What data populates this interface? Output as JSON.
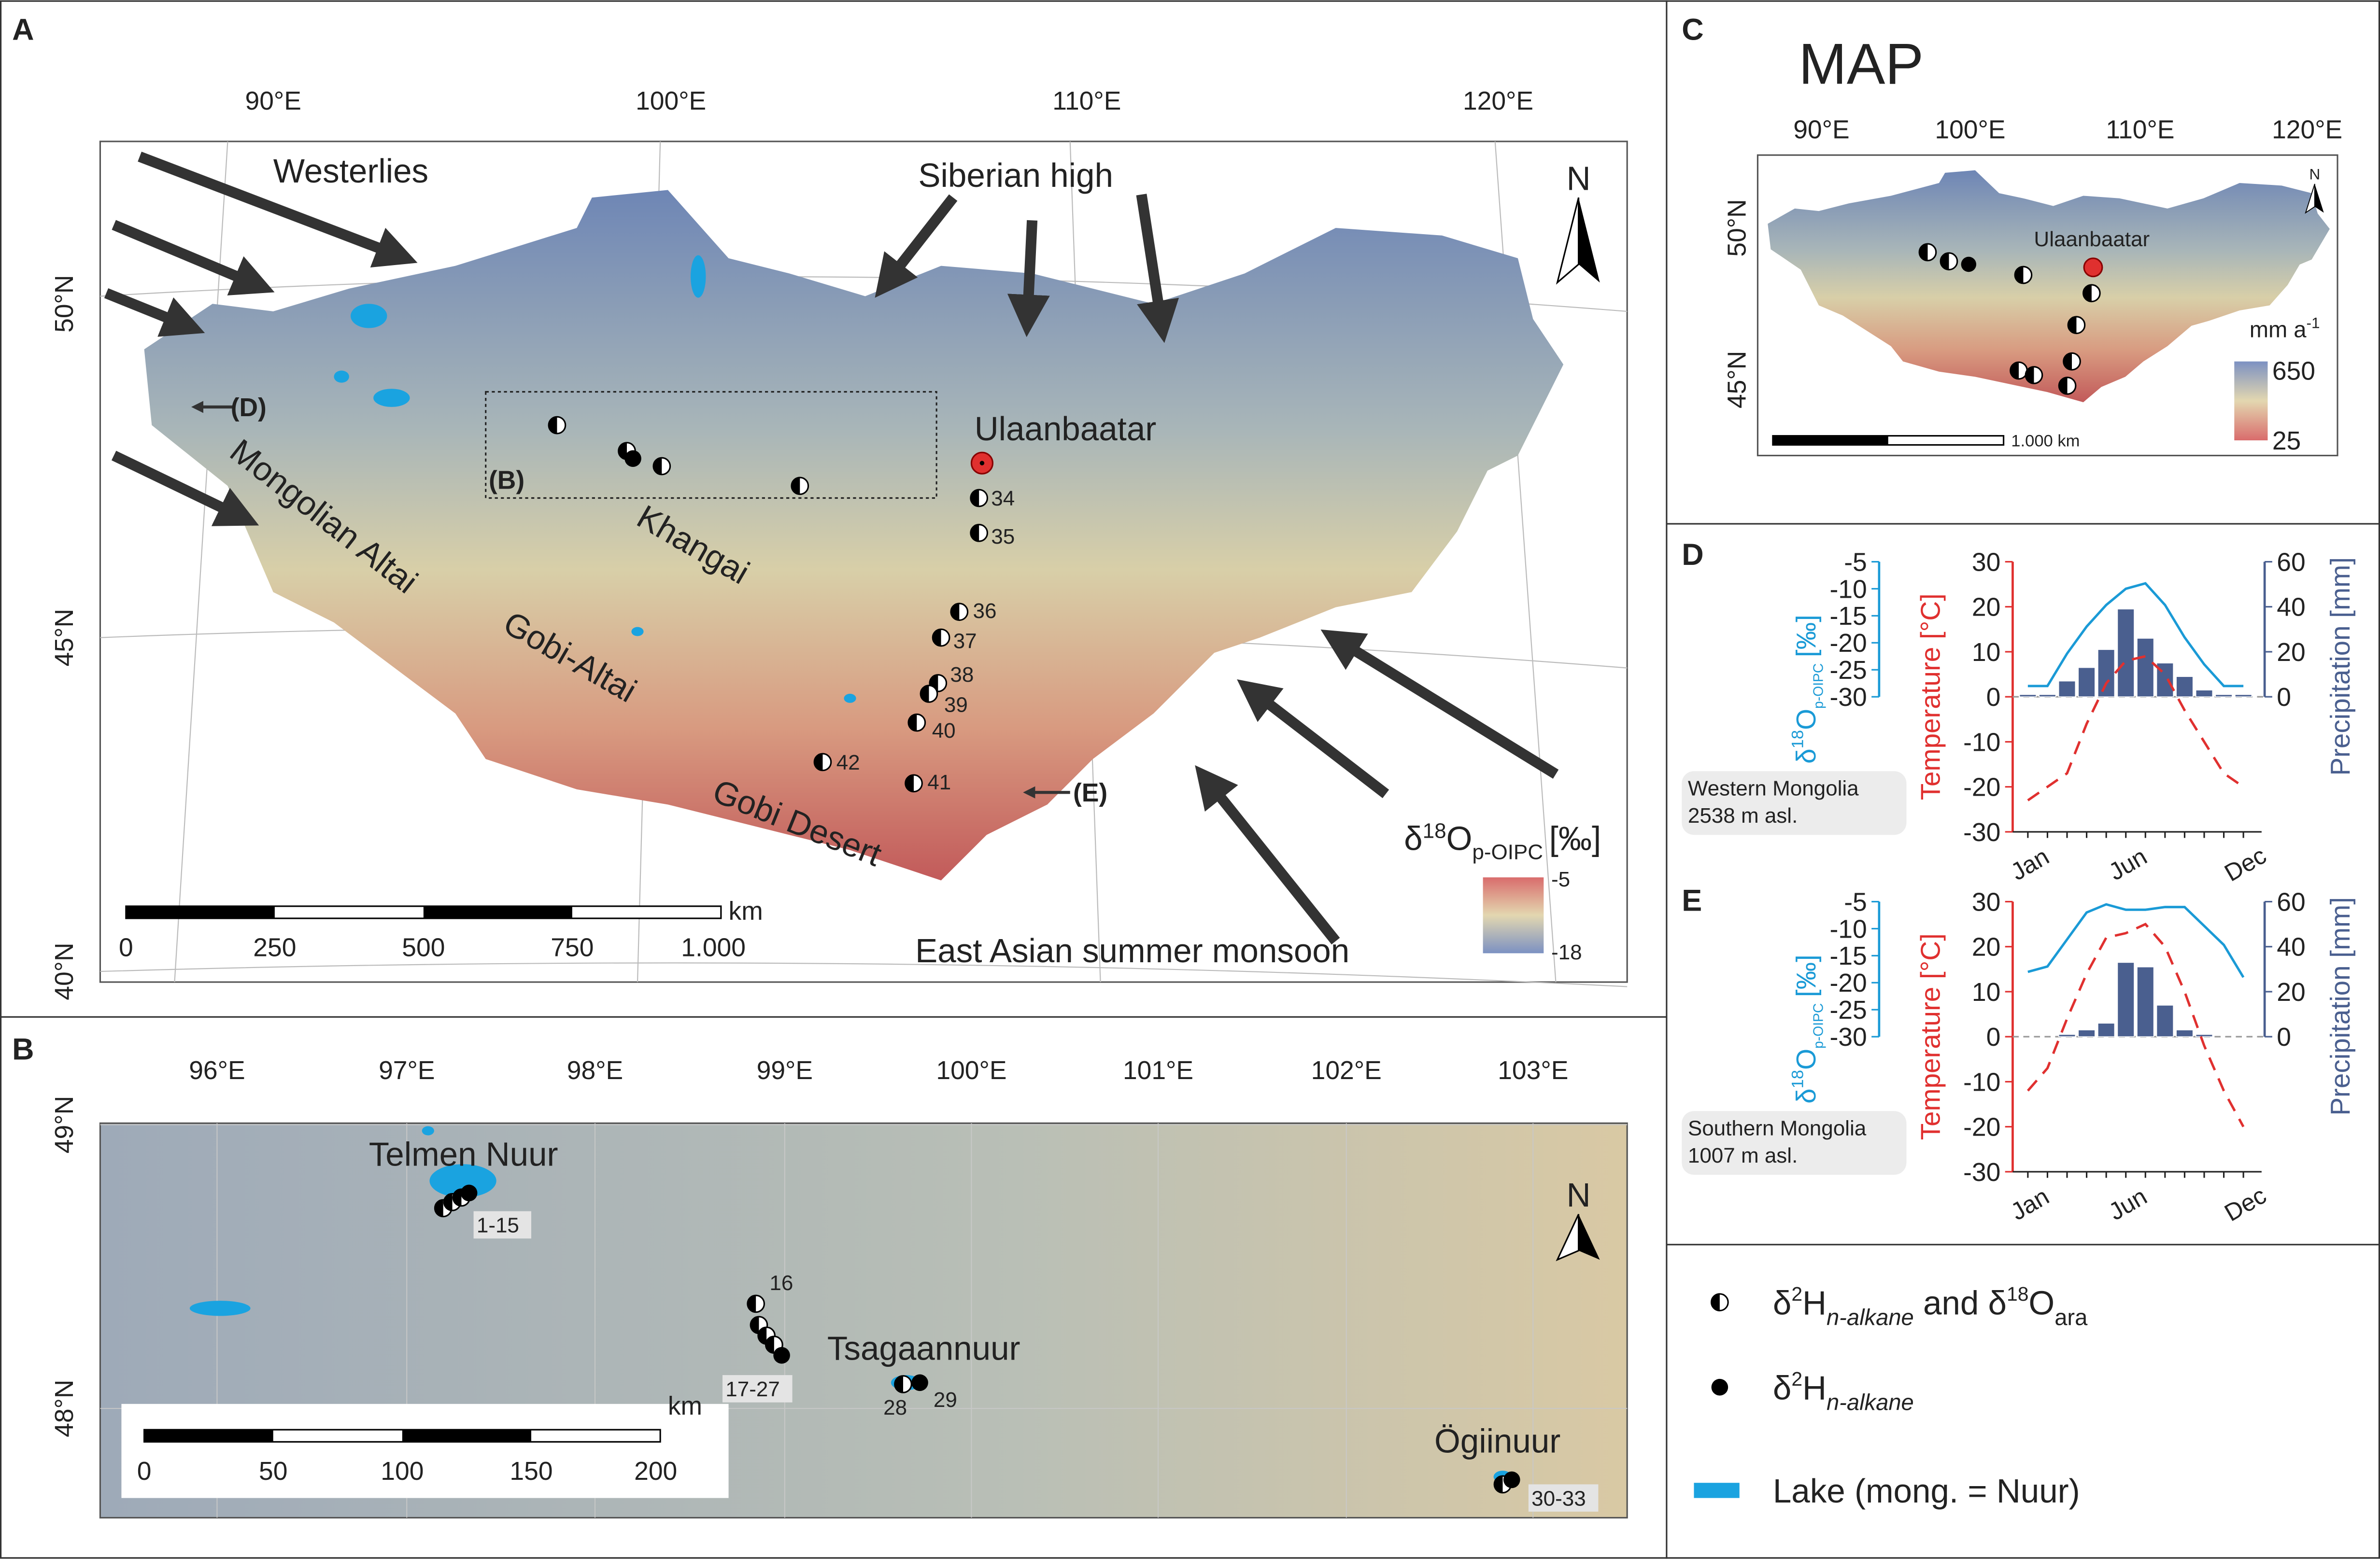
{
  "panel_labels": [
    "A",
    "B",
    "C",
    "D",
    "E"
  ],
  "map_a": {
    "lon_ticks": [
      "90°E",
      "100°E",
      "110°E",
      "120°E"
    ],
    "lat_ticks": [
      "50°N",
      "45°N",
      "40°N"
    ],
    "labels": {
      "westerlies": "Westerlies",
      "siberian_high": "Siberian high",
      "ulaanbaatar": "Ulaanbaatar",
      "mongolian_altai": "Mongolian Altai",
      "khangai": "Khangai",
      "gobi_altai": "Gobi-Altai",
      "gobi_desert": "Gobi Desert",
      "monsoon": "East Asian summer monsoon",
      "ref_b": "(B)",
      "ref_d": "(D)",
      "ref_e": "(E)"
    },
    "sites": [
      "34",
      "35",
      "36",
      "37",
      "38",
      "39",
      "40",
      "41",
      "42"
    ],
    "north": "N",
    "scale": [
      "0",
      "250",
      "500",
      "750",
      "1.000"
    ],
    "scale_unit": "km",
    "legend_title": {
      "delta": "δ",
      "sup": "18",
      "base": "O",
      "sub": "p-OIPC",
      "unit": "[‰]"
    },
    "legend_ticks": [
      "-5",
      "-18"
    ]
  },
  "map_b": {
    "lon_ticks": [
      "96°E",
      "97°E",
      "98°E",
      "99°E",
      "100°E",
      "101°E",
      "102°E",
      "103°E"
    ],
    "lat_ticks": [
      "49°N",
      "48°N"
    ],
    "labels": {
      "telmen": "Telmen Nuur",
      "tsagaan": "Tsagaannuur",
      "ogii": "Ögiinuur"
    },
    "sites": [
      "1-15",
      "16",
      "17-27",
      "28",
      "29",
      "30-33"
    ],
    "north": "N",
    "scale": [
      "0",
      "50",
      "100",
      "150",
      "200"
    ],
    "scale_unit": "km"
  },
  "map_c": {
    "title": "MAP",
    "lon_ticks": [
      "90°E",
      "100°E",
      "110°E",
      "120°E"
    ],
    "lat_ticks": [
      "50°N",
      "45°N"
    ],
    "ulaanbaatar": "Ulaanbaatar",
    "legend_title": {
      "base": "mm a",
      "sup": "-1"
    },
    "legend_ticks": [
      "650",
      "25"
    ],
    "scale": "1.000 km",
    "north": "N"
  },
  "legend": {
    "both": {
      "delta": "δ",
      "sup": "2",
      "base": "H",
      "sub": "n-alkane",
      "mid": " and δ",
      "sup2": "18",
      "base2": "O",
      "sub2": "ara"
    },
    "h_only": {
      "delta": "δ",
      "sup": "2",
      "base": "H",
      "sub": "n-alkane"
    },
    "lake": "Lake (mong. = Nuur)"
  },
  "chart_data": [
    {
      "type": "combo",
      "station": "Western Mongolia",
      "elevation": "2538 m asl.",
      "categories": [
        "Jan",
        null,
        null,
        null,
        null,
        "Jun",
        null,
        null,
        null,
        null,
        null,
        "Dec"
      ],
      "ylabel": "Temperature [°C]",
      "y2label": "Precipitation [mm]",
      "y3label": {
        "delta": "δ",
        "sup": "18",
        "base": "O",
        "sub": "p-OIPC",
        "unit": "[‰]"
      },
      "ylim": [
        -30,
        30
      ],
      "yticks": [
        -30,
        -20,
        -10,
        0,
        10,
        20,
        30
      ],
      "y2lim": [
        0,
        60
      ],
      "y2ticks": [
        0,
        20,
        40,
        60
      ],
      "y3lim": [
        -30,
        -5
      ],
      "y3ticks": [
        -30,
        -25,
        -20,
        -15,
        -10,
        -5
      ],
      "series": [
        {
          "type": "bar",
          "axis": "y2",
          "color": "#4a5f8f",
          "values": [
            1,
            1,
            7,
            13,
            21,
            39,
            26,
            15,
            9,
            3,
            1,
            1
          ]
        },
        {
          "type": "line",
          "axis": "y",
          "color": "#e0302f",
          "line_style": "dashed",
          "values": [
            -23,
            -20,
            -17,
            -6,
            3,
            8,
            9,
            5,
            -3,
            -10,
            -17,
            -20
          ]
        },
        {
          "type": "line",
          "axis": "y3",
          "color": "#1a9ad6",
          "line_style": "solid",
          "values": [
            -28,
            -28,
            -22,
            -17,
            -13,
            -10,
            -9,
            -13,
            -19,
            -24,
            -28,
            -28
          ]
        }
      ]
    },
    {
      "type": "combo",
      "station": "Southern Mongolia",
      "elevation": "1007 m asl.",
      "categories": [
        "Jan",
        null,
        null,
        null,
        null,
        "Jun",
        null,
        null,
        null,
        null,
        null,
        "Dec"
      ],
      "ylabel": "Temperature [°C]",
      "y2label": "Precipitation [mm]",
      "y3label": {
        "delta": "δ",
        "sup": "18",
        "base": "O",
        "sub": "p-OIPC",
        "unit": "[‰]"
      },
      "ylim": [
        -30,
        30
      ],
      "yticks": [
        -30,
        -20,
        -10,
        0,
        10,
        20,
        30
      ],
      "y2lim": [
        0,
        60
      ],
      "y2ticks": [
        0,
        20,
        40,
        60
      ],
      "y3lim": [
        -30,
        -5
      ],
      "y3ticks": [
        -30,
        -25,
        -20,
        -15,
        -10,
        -5
      ],
      "series": [
        {
          "type": "bar",
          "axis": "y2",
          "color": "#4a5f8f",
          "values": [
            0,
            0,
            1,
            3,
            6,
            33,
            31,
            14,
            3,
            1,
            0,
            0
          ]
        },
        {
          "type": "line",
          "axis": "y",
          "color": "#e0302f",
          "line_style": "dashed",
          "values": [
            -12,
            -7,
            4,
            14,
            22,
            23,
            25,
            20,
            10,
            -2,
            -12,
            -20
          ]
        },
        {
          "type": "line",
          "axis": "y3",
          "color": "#1a9ad6",
          "line_style": "solid",
          "values": [
            -18,
            -17,
            -12,
            -7,
            -5.5,
            -6.5,
            -6.5,
            -6,
            -6,
            -9.5,
            -13,
            -19
          ]
        }
      ]
    }
  ]
}
